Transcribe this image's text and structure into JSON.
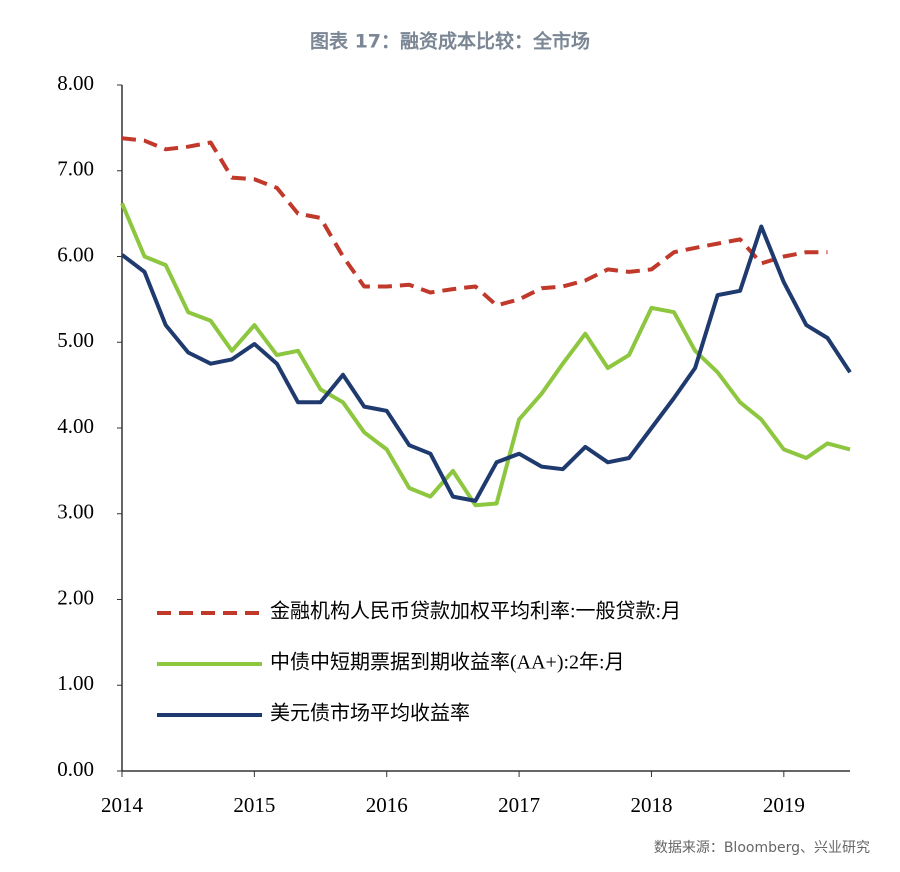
{
  "chart_data": {
    "type": "line",
    "title": "图表 17：融资成本比较：全市场",
    "source": "数据来源：Bloomberg、兴业研究",
    "x": [
      2014.0,
      2014.17,
      2014.33,
      2014.5,
      2014.67,
      2014.83,
      2015.0,
      2015.17,
      2015.33,
      2015.5,
      2015.67,
      2015.83,
      2016.0,
      2016.17,
      2016.33,
      2016.5,
      2016.67,
      2016.83,
      2017.0,
      2017.17,
      2017.33,
      2017.5,
      2017.67,
      2017.83,
      2018.0,
      2018.17,
      2018.33,
      2018.5,
      2018.67,
      2018.83,
      2019.0,
      2019.17,
      2019.33,
      2019.5
    ],
    "series": [
      {
        "name": "金融机构人民币贷款加权平均利率:一般贷款:月",
        "color": "#c0392b",
        "dash": true,
        "values": [
          7.38,
          7.35,
          7.25,
          7.28,
          7.33,
          6.92,
          6.9,
          6.8,
          6.5,
          6.45,
          6.0,
          5.65,
          5.65,
          5.67,
          5.58,
          5.62,
          5.65,
          5.43,
          5.5,
          5.63,
          5.65,
          5.72,
          5.85,
          5.82,
          5.85,
          6.05,
          6.1,
          6.15,
          6.2,
          5.92,
          6.0,
          6.05,
          6.05,
          null
        ]
      },
      {
        "name": "中债中短期票据到期收益率(AA+):2年:月",
        "color": "#8dc63f",
        "dash": false,
        "values": [
          6.62,
          6.0,
          5.9,
          5.35,
          5.25,
          4.9,
          5.2,
          4.85,
          4.9,
          4.45,
          4.3,
          3.95,
          3.75,
          3.3,
          3.2,
          3.5,
          3.1,
          3.12,
          4.1,
          4.4,
          4.75,
          5.1,
          4.7,
          4.85,
          5.4,
          5.35,
          4.9,
          4.65,
          4.3,
          4.1,
          3.75,
          3.65,
          3.82,
          3.75
        ]
      },
      {
        "name": "美元债市场平均收益率",
        "color": "#1f3a6e",
        "dash": false,
        "values": [
          6.02,
          5.82,
          5.2,
          4.88,
          4.75,
          4.8,
          4.98,
          4.75,
          4.3,
          4.3,
          4.62,
          4.25,
          4.2,
          3.8,
          3.7,
          3.2,
          3.15,
          3.6,
          3.7,
          3.55,
          3.52,
          3.78,
          3.6,
          3.65,
          4.0,
          4.35,
          4.7,
          5.55,
          5.6,
          6.35,
          5.7,
          5.2,
          5.05,
          4.65
        ]
      }
    ],
    "xlim": [
      2014,
      2019.5
    ],
    "xticks": [
      2014,
      2015,
      2016,
      2017,
      2018,
      2019
    ],
    "ylim": [
      0,
      8
    ],
    "yticks": [
      {
        "value": 0,
        "label": "0.00"
      },
      {
        "value": 1,
        "label": "1.00"
      },
      {
        "value": 2,
        "label": "2.00"
      },
      {
        "value": 3,
        "label": "3.00"
      },
      {
        "value": 4,
        "label": "4.00"
      },
      {
        "value": 5,
        "label": "5.00"
      },
      {
        "value": 6,
        "label": "6.00"
      },
      {
        "value": 7,
        "label": "7.00"
      },
      {
        "value": 8,
        "label": "8.00"
      }
    ],
    "grid": false
  }
}
